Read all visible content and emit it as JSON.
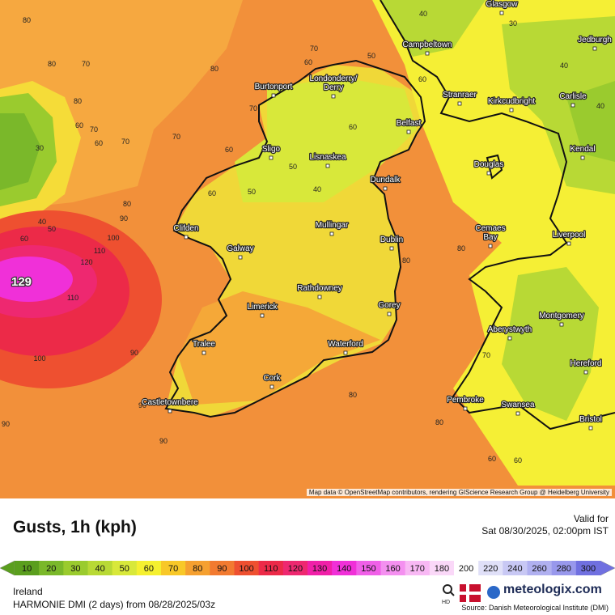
{
  "map": {
    "attribution": "Map data © OpenStreetMap contributors, rendering GIScience Research Group @ Heidelberg University",
    "max_label": "129",
    "cities": [
      [
        "Glasgow"
      ],
      [
        "Campbeltown"
      ],
      [
        "Jedburgh"
      ],
      [
        "Burtonport"
      ],
      [
        "Londonderry/",
        "Derry"
      ],
      [
        "Stranraer"
      ],
      [
        "Kirkcudbright"
      ],
      [
        "Carlisle"
      ],
      [
        "Belfast"
      ],
      [
        "Kendal"
      ],
      [
        "Sligo"
      ],
      [
        "Lisnaskea"
      ],
      [
        "Douglas"
      ],
      [
        "Dundalk"
      ],
      [
        "Clifden"
      ],
      [
        "Mullingar"
      ],
      [
        "Cemaes",
        "Bay"
      ],
      [
        "Dublin"
      ],
      [
        "Liverpool"
      ],
      [
        "Galway"
      ],
      [
        "Rathdowney"
      ],
      [
        "Limerick"
      ],
      [
        "Gorey"
      ],
      [
        "Montgomery"
      ],
      [
        "Aberystwyth"
      ],
      [
        "Tralee"
      ],
      [
        "Waterford"
      ],
      [
        "Hereford"
      ],
      [
        "Cork"
      ],
      [
        "Pembroke"
      ],
      [
        "Swansea"
      ],
      [
        "Castletownbere"
      ],
      [
        "Bristol"
      ]
    ],
    "value_labels": [
      "80",
      "80",
      "70",
      "80",
      "60",
      "70",
      "30",
      "60",
      "70",
      "70",
      "80",
      "70",
      "60",
      "70",
      "60",
      "50",
      "60",
      "50",
      "40",
      "80",
      "90",
      "100",
      "110",
      "120",
      "110",
      "100",
      "90",
      "90",
      "90",
      "90",
      "40",
      "50",
      "60",
      "80",
      "80",
      "80",
      "60",
      "60",
      "50",
      "60",
      "40",
      "30",
      "40",
      "40",
      "80",
      "70",
      "60"
    ]
  },
  "legend": {
    "title": "Gusts, 1h (kph)",
    "valid_label": "Valid for",
    "valid_time": "Sat 08/30/2025, 02:00pm IST",
    "stops": [
      {
        "value": 10,
        "color": "#5a9e1e"
      },
      {
        "value": 20,
        "color": "#7ab82a"
      },
      {
        "value": 30,
        "color": "#9acb2e"
      },
      {
        "value": 40,
        "color": "#b8d935"
      },
      {
        "value": 50,
        "color": "#d8e83a"
      },
      {
        "value": 60,
        "color": "#f5f030"
      },
      {
        "value": 70,
        "color": "#f8c828"
      },
      {
        "value": 80,
        "color": "#f5a030"
      },
      {
        "value": 90,
        "color": "#f27a30"
      },
      {
        "value": 100,
        "color": "#ee5030"
      },
      {
        "value": 110,
        "color": "#ec2a48"
      },
      {
        "value": 120,
        "color": "#ee2870"
      },
      {
        "value": 130,
        "color": "#f020a8"
      },
      {
        "value": 140,
        "color": "#f030d8"
      },
      {
        "value": 150,
        "color": "#f060e8"
      },
      {
        "value": 160,
        "color": "#f490f0"
      },
      {
        "value": 170,
        "color": "#f8b8f4"
      },
      {
        "value": 180,
        "color": "#fad8f8"
      },
      {
        "value": 200,
        "color": "#ffffff"
      },
      {
        "value": 220,
        "color": "#e0e0f8"
      },
      {
        "value": 240,
        "color": "#c8c8f4"
      },
      {
        "value": 260,
        "color": "#b0b0f0"
      },
      {
        "value": 280,
        "color": "#9898ec"
      },
      {
        "value": 300,
        "color": "#7070e0"
      }
    ]
  },
  "footer": {
    "region": "Ireland",
    "model": "HARMONIE DMI (2 days)  from  08/28/2025/03z",
    "hd": "HD",
    "brand": "meteologix.com",
    "source": "Source: Danish Meteorological Institute (DMI)"
  }
}
